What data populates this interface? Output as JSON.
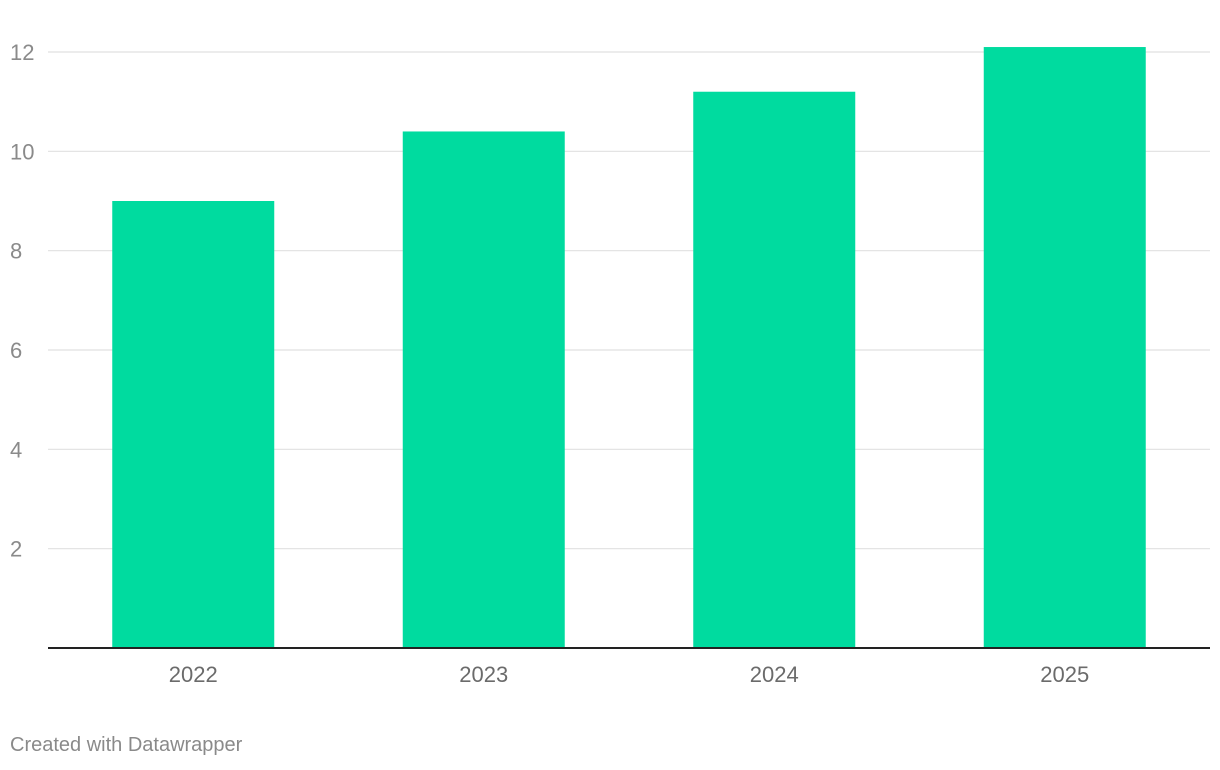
{
  "chart_data": {
    "type": "bar",
    "categories": [
      "2022",
      "2023",
      "2024",
      "2025"
    ],
    "values": [
      9.0,
      10.4,
      11.2,
      12.1
    ],
    "yticks": [
      2,
      4,
      6,
      8,
      10,
      12
    ],
    "ylim": [
      0,
      12.2
    ],
    "grid": true,
    "bar_color": "#00db9f",
    "title": "",
    "xlabel": "",
    "ylabel": ""
  },
  "footer": {
    "credit": "Created with Datawrapper"
  }
}
